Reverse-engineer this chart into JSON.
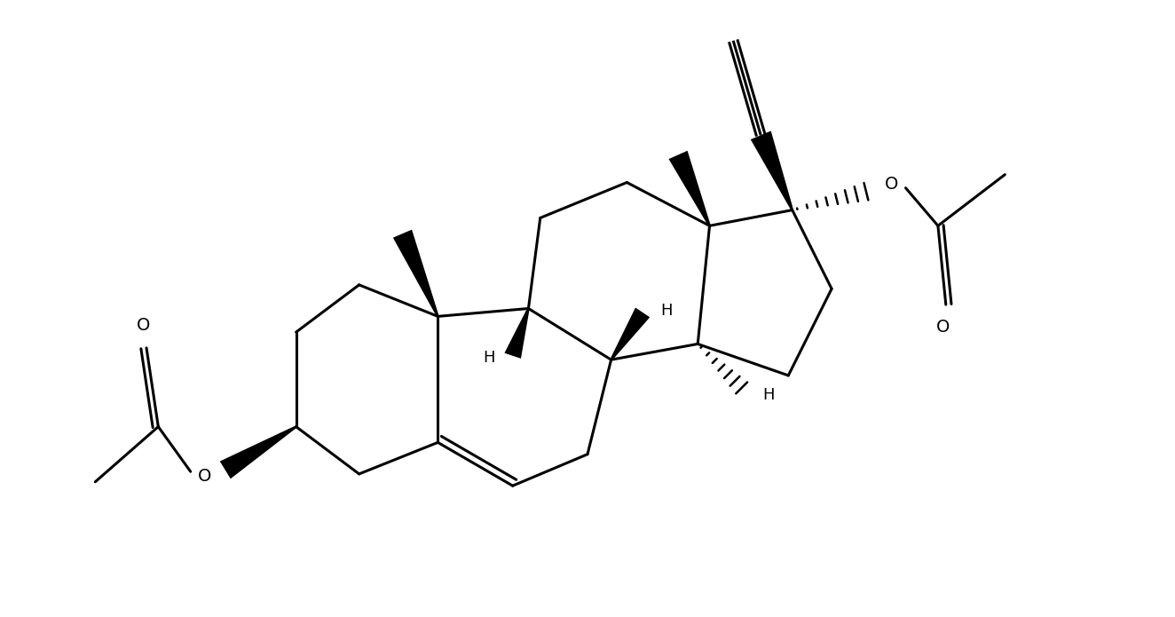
{
  "bg_color": "#ffffff",
  "line_color": "#000000",
  "lw": 2.2,
  "figsize": [
    13.24,
    6.95
  ],
  "dpi": 100,
  "xlim": [
    -0.5,
    13.5
  ],
  "ylim": [
    -0.3,
    7.5
  ]
}
